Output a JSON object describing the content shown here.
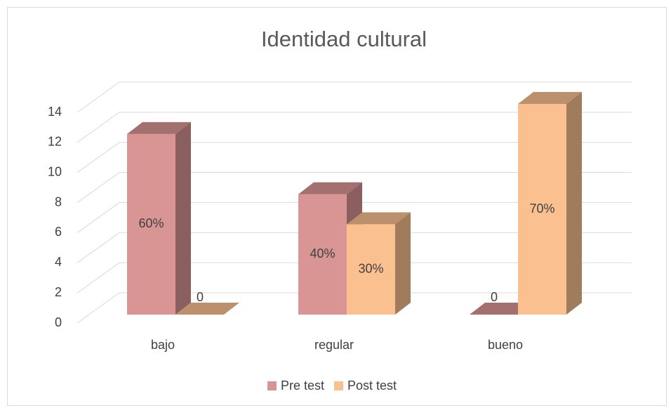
{
  "chart_data": {
    "type": "bar3d",
    "title": "Identidad cultural",
    "categories": [
      "bajo",
      "regular",
      "bueno"
    ],
    "series": [
      {
        "name": "Pre test",
        "color": "#d99594",
        "values": [
          12,
          8,
          0
        ],
        "value_labels": [
          "60%",
          "40%",
          "0"
        ]
      },
      {
        "name": "Post test",
        "color": "#fac090",
        "values": [
          0,
          6,
          14
        ],
        "value_labels": [
          "0",
          "30%",
          "70%"
        ]
      }
    ],
    "ylim": [
      0,
      14
    ],
    "yticks": [
      0,
      2,
      4,
      6,
      8,
      10,
      12,
      14
    ],
    "grid": true,
    "legend": "bottom"
  }
}
